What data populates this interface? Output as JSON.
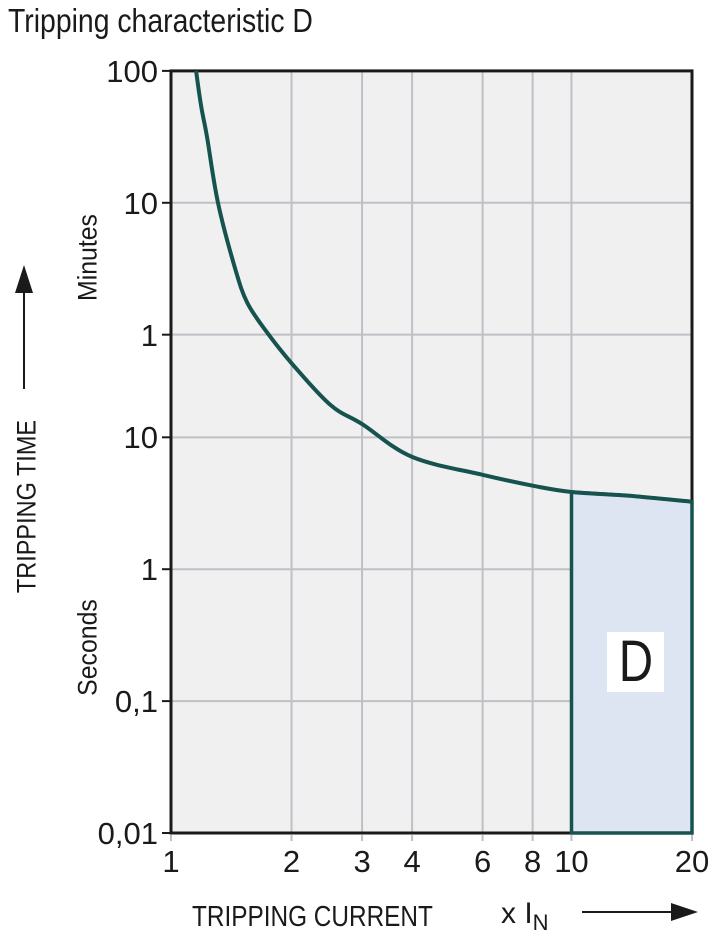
{
  "chart_data": {
    "type": "line",
    "title": "Tripping characteristic D",
    "x_axis": {
      "label": "TRIPPING CURRENT",
      "unit_prefix": "x I",
      "unit_sub": "N",
      "scale": "log",
      "range": [
        1,
        20
      ],
      "ticks": [
        {
          "label": "1",
          "value": 1
        },
        {
          "label": "2",
          "value": 2
        },
        {
          "label": "3",
          "value": 3
        },
        {
          "label": "4",
          "value": 4
        },
        {
          "label": "6",
          "value": 6
        },
        {
          "label": "8",
          "value": 8
        },
        {
          "label": "10",
          "value": 10
        },
        {
          "label": "20",
          "value": 20
        }
      ],
      "gridlines": [
        2,
        3,
        4,
        6,
        8,
        10
      ]
    },
    "y_axis": {
      "label": "TRIPPING TIME",
      "unit_top": "Minutes",
      "unit_bottom": "Seconds",
      "scale": "log",
      "range_seconds": [
        0.01,
        6000
      ],
      "ticks": [
        {
          "label": "100",
          "seconds": 6000
        },
        {
          "label": "10",
          "seconds": 600
        },
        {
          "label": "1",
          "seconds": 60
        },
        {
          "label": "10",
          "seconds": 10
        },
        {
          "label": "1",
          "seconds": 1
        },
        {
          "label": "0,1",
          "seconds": 0.1
        },
        {
          "label": "0,01",
          "seconds": 0.01
        }
      ],
      "gridlines_seconds": [
        600,
        60,
        10,
        1,
        0.1
      ]
    },
    "series": [
      {
        "name": "D tripping characteristic curve",
        "points_x_in_vs_t_seconds": [
          [
            1.155,
            6000
          ],
          [
            1.19,
            3200
          ],
          [
            1.23,
            1900
          ],
          [
            1.31,
            600
          ],
          [
            1.45,
            185
          ],
          [
            1.55,
            105
          ],
          [
            1.72,
            65
          ],
          [
            2.0,
            36.5
          ],
          [
            2.5,
            17.6
          ],
          [
            3.0,
            12.6
          ],
          [
            4.0,
            7.1
          ],
          [
            6.0,
            5.2
          ],
          [
            8.0,
            4.3
          ],
          [
            10.0,
            3.85
          ],
          [
            14.0,
            3.6
          ],
          [
            20.0,
            3.25
          ]
        ]
      }
    ],
    "region": {
      "label": "D",
      "x_from": 10,
      "x_to": 20,
      "t_bottom_seconds": 0.01,
      "bounded_above_by": "curve"
    },
    "grid": "on",
    "legend": null,
    "colors": {
      "curve": "#17534e",
      "region_fill": "#dee5f2",
      "region_border": "#17534e",
      "plot_bg": "#f0f0f0",
      "grid": "#bfbfc7",
      "axis": "#1a1a1a",
      "text": "#1a1a1a",
      "region_label_bg": "#ffffff"
    }
  }
}
